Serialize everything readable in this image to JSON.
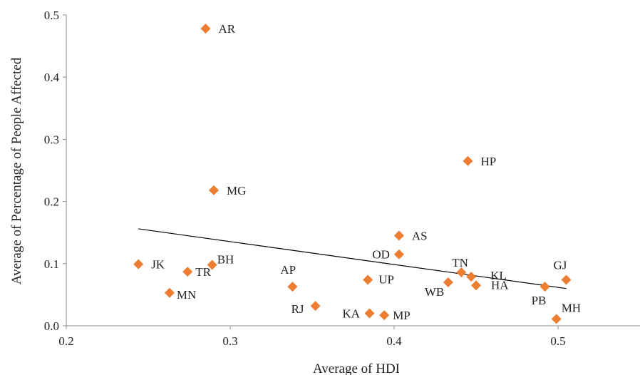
{
  "chart_data": {
    "type": "scatter",
    "title": "",
    "xlabel": "Average of HDI",
    "ylabel": "Average of Percentage of People Affected",
    "xlim": [
      0.2,
      0.55
    ],
    "ylim": [
      0,
      0.5
    ],
    "xticks": [
      "0.2",
      "0.3",
      "0.4",
      "0.5"
    ],
    "yticks": [
      "0.0",
      "0.1",
      "0.2",
      "0.3",
      "0.4",
      "0.5"
    ],
    "grid": false,
    "legend": "none",
    "marker": "diamond",
    "marker_color": "#ED7D31",
    "trendline_color": "#000000",
    "trendline": {
      "x": [
        0.244,
        0.505
      ],
      "y": [
        0.156,
        0.06
      ]
    },
    "points": [
      {
        "label": "AR",
        "x": 0.285,
        "y": 0.478
      },
      {
        "label": "HP",
        "x": 0.445,
        "y": 0.265
      },
      {
        "label": "MG",
        "x": 0.29,
        "y": 0.218
      },
      {
        "label": "AS",
        "x": 0.403,
        "y": 0.145
      },
      {
        "label": "OD",
        "x": 0.403,
        "y": 0.115
      },
      {
        "label": "JK",
        "x": 0.244,
        "y": 0.099
      },
      {
        "label": "BH",
        "x": 0.289,
        "y": 0.098
      },
      {
        "label": "TR",
        "x": 0.274,
        "y": 0.087
      },
      {
        "label": "TN",
        "x": 0.441,
        "y": 0.086
      },
      {
        "label": "KL",
        "x": 0.447,
        "y": 0.079
      },
      {
        "label": "UP",
        "x": 0.384,
        "y": 0.074
      },
      {
        "label": "GJ",
        "x": 0.505,
        "y": 0.074
      },
      {
        "label": "WB",
        "x": 0.433,
        "y": 0.07
      },
      {
        "label": "HA",
        "x": 0.45,
        "y": 0.065
      },
      {
        "label": "PB",
        "x": 0.492,
        "y": 0.063
      },
      {
        "label": "AP",
        "x": 0.338,
        "y": 0.063
      },
      {
        "label": "MN",
        "x": 0.263,
        "y": 0.053
      },
      {
        "label": "RJ",
        "x": 0.352,
        "y": 0.032
      },
      {
        "label": "KA",
        "x": 0.385,
        "y": 0.02
      },
      {
        "label": "MP",
        "x": 0.394,
        "y": 0.017
      },
      {
        "label": "MH",
        "x": 0.499,
        "y": 0.011
      }
    ]
  }
}
